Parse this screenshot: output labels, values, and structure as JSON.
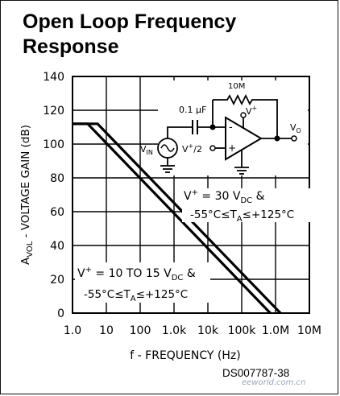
{
  "title_line1": "Open Loop Frequency",
  "title_line2": "Response",
  "document_code": "DS007787-38",
  "watermark": "eeworld.com.cn",
  "colors": {
    "line": "#000000",
    "grid": "#000000",
    "background": "#ffffff"
  },
  "chart_data": {
    "type": "line",
    "xscale": "log",
    "xlabel": "f - FREQUENCY (Hz)",
    "ylabel": "AVOL - VOLTAGE GAIN (dB)",
    "ylim": [
      0,
      140
    ],
    "y_ticks": [
      "0",
      "20",
      "40",
      "60",
      "80",
      "100",
      "120",
      "140"
    ],
    "x_ticks": [
      "1.0",
      "10",
      "100",
      "1.0k",
      "10k",
      "100k",
      "1.0M",
      "10M"
    ],
    "grid": true,
    "series": [
      {
        "name": "",
        "x": [
          1,
          2.8,
          700000
        ],
        "y": [
          112,
          112,
          0
        ]
      },
      {
        "name": "",
        "x": [
          1,
          5.5,
          1400000
        ],
        "y": [
          112,
          112,
          0
        ]
      }
    ],
    "annotations": [
      {
        "text": "V+ = 30 VDC &",
        "near": "upper-right"
      },
      {
        "text": "-55°C≤TA≤+125°C",
        "near": "upper-right"
      },
      {
        "text": "V+ = 10 TO 15 VDC &",
        "near": "lower-left"
      },
      {
        "text": "-55°C≤TA≤+125°C",
        "near": "lower-left"
      }
    ],
    "inset_circuit": {
      "labels": [
        "10M",
        "0.1 µF",
        "V+",
        "VIN",
        "V+/2",
        "VO",
        "-",
        "+"
      ]
    }
  }
}
